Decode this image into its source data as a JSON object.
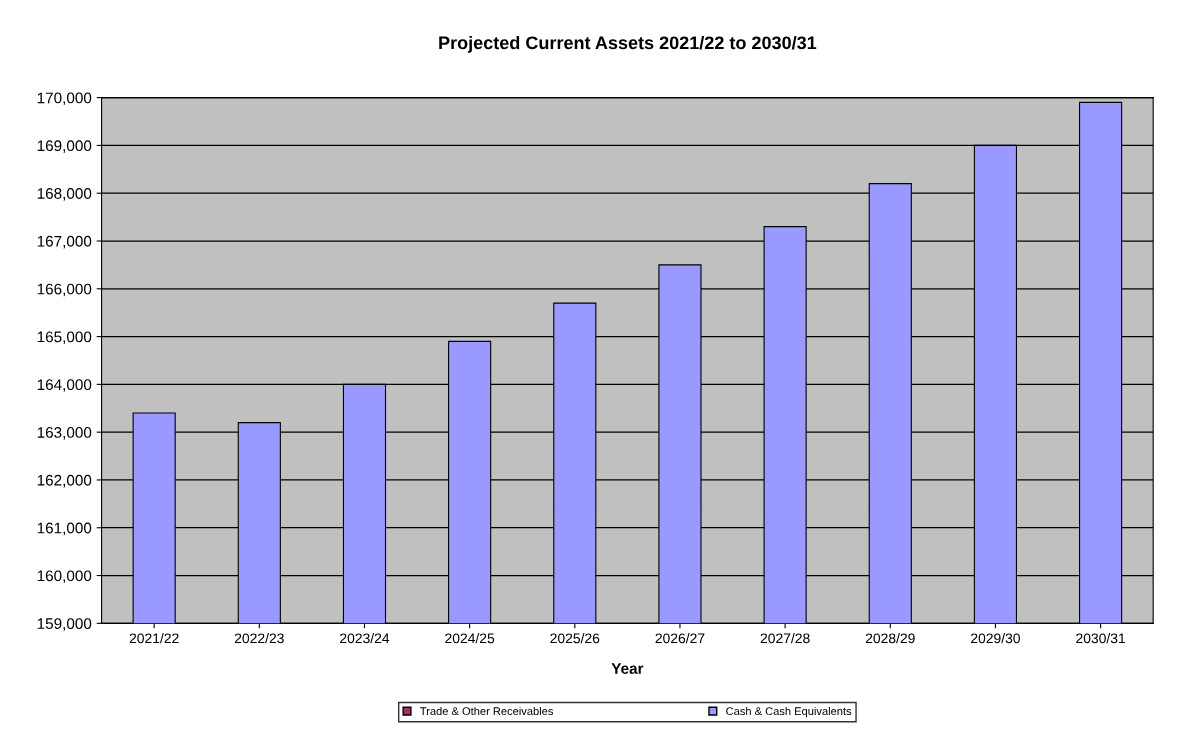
{
  "chart_data": {
    "type": "bar",
    "title": "Projected Current Assets 2021/22 to 2030/31",
    "xlabel": "Year",
    "categories": [
      "2021/22",
      "2022/23",
      "2023/24",
      "2024/25",
      "2025/26",
      "2026/27",
      "2027/28",
      "2028/29",
      "2029/30",
      "2030/31"
    ],
    "stacked": true,
    "series": [
      {
        "name": "Cash & Cash Equivalents",
        "color": "#9999ff",
        "values": [
          163400,
          163200,
          164000,
          164900,
          165700,
          166500,
          167300,
          168200,
          169000,
          169900
        ]
      },
      {
        "name": "Trade & Other Receivables",
        "color": "#993366",
        "values": [
          null,
          null,
          null,
          null,
          null,
          null,
          null,
          null,
          null,
          null
        ]
      }
    ],
    "ylim": [
      159000,
      170000
    ],
    "yticks": [
      {
        "value": 159000,
        "label": "159,000"
      },
      {
        "value": 160000,
        "label": "160,000"
      },
      {
        "value": 161000,
        "label": "161,000"
      },
      {
        "value": 162000,
        "label": "162,000"
      },
      {
        "value": 163000,
        "label": "163,000"
      },
      {
        "value": 164000,
        "label": "164,000"
      },
      {
        "value": 165000,
        "label": "165,000"
      },
      {
        "value": 166000,
        "label": "166,000"
      },
      {
        "value": 167000,
        "label": "167,000"
      },
      {
        "value": 168000,
        "label": "168,000"
      },
      {
        "value": 169000,
        "label": "169,000"
      },
      {
        "value": 170000,
        "label": "170,000"
      }
    ],
    "grid": "y",
    "legend": "bottom"
  }
}
